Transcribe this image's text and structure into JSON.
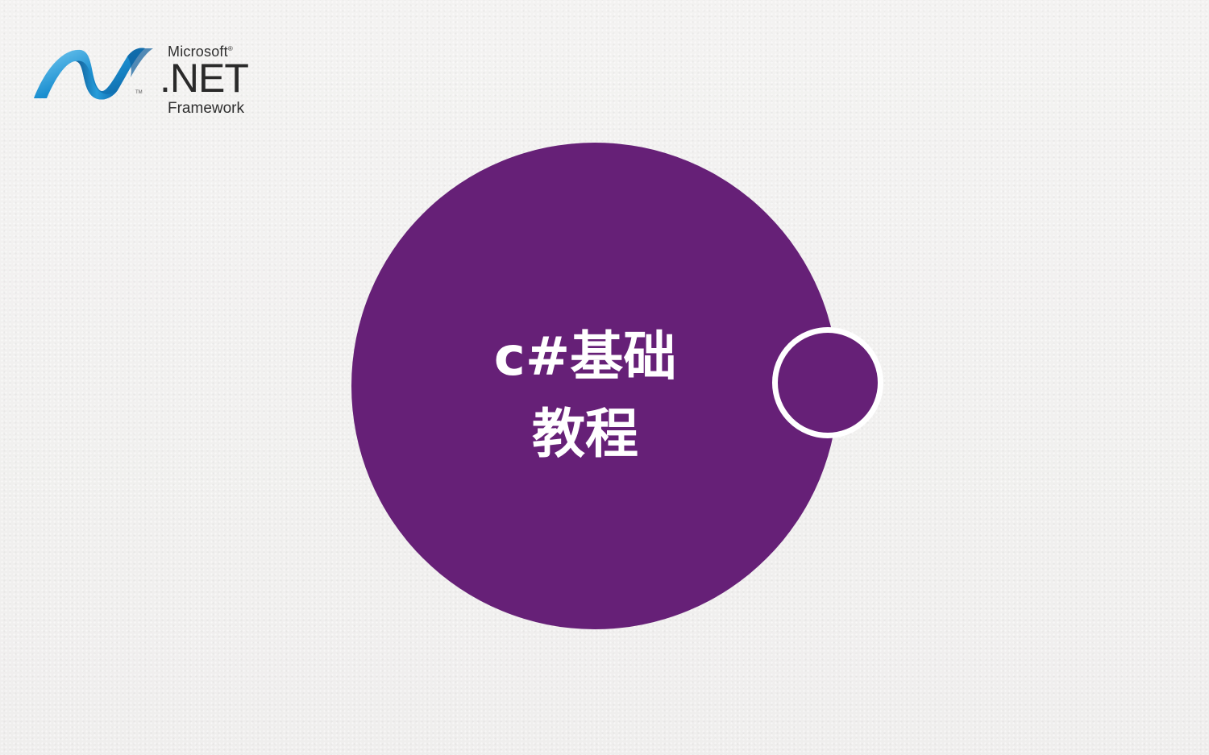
{
  "logo": {
    "brand": "Microsoft",
    "product": ".NET",
    "subtitle": "Framework",
    "trademark": "TM",
    "registered": "®",
    "icon": "dotnet-wave-logo-icon"
  },
  "main": {
    "title_line1": "c#基础",
    "title_line2": "教程"
  },
  "colors": {
    "circle": "#662077",
    "text": "#ffffff",
    "logo_blue": "#1b8fd0"
  }
}
